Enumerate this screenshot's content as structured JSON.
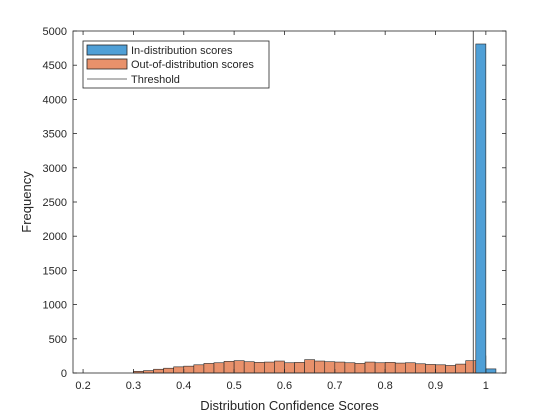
{
  "chart_data": {
    "type": "bar",
    "xlabel": "Distribution Confidence Scores",
    "ylabel": "Frequency",
    "xlim": [
      0.18,
      1.04
    ],
    "ylim": [
      0,
      5000
    ],
    "xticks": [
      "0.2",
      "0.3",
      "0.4",
      "0.5",
      "0.6",
      "0.7",
      "0.8",
      "0.9",
      "1"
    ],
    "yticks": [
      "0",
      "500",
      "1000",
      "1500",
      "2000",
      "2500",
      "3000",
      "3500",
      "4000",
      "4500",
      "5000"
    ],
    "grid": false,
    "legend_position": "top-left",
    "bin_width": 0.02,
    "series": [
      {
        "name": "In-distribution scores",
        "color": "#4f9fd6",
        "bins": [
          {
            "x0": 0.98,
            "x1": 1.0,
            "count": 4810
          },
          {
            "x0": 1.0,
            "x1": 1.02,
            "count": 60
          }
        ]
      },
      {
        "name": "Out-of-distribution scores",
        "color": "#e8916b",
        "bins": [
          {
            "x0": 0.3,
            "x1": 0.32,
            "count": 25
          },
          {
            "x0": 0.32,
            "x1": 0.34,
            "count": 35
          },
          {
            "x0": 0.34,
            "x1": 0.36,
            "count": 55
          },
          {
            "x0": 0.36,
            "x1": 0.38,
            "count": 70
          },
          {
            "x0": 0.38,
            "x1": 0.4,
            "count": 90
          },
          {
            "x0": 0.4,
            "x1": 0.42,
            "count": 100
          },
          {
            "x0": 0.42,
            "x1": 0.44,
            "count": 120
          },
          {
            "x0": 0.44,
            "x1": 0.46,
            "count": 140
          },
          {
            "x0": 0.46,
            "x1": 0.48,
            "count": 150
          },
          {
            "x0": 0.48,
            "x1": 0.5,
            "count": 170
          },
          {
            "x0": 0.5,
            "x1": 0.52,
            "count": 180
          },
          {
            "x0": 0.52,
            "x1": 0.54,
            "count": 165
          },
          {
            "x0": 0.54,
            "x1": 0.56,
            "count": 155
          },
          {
            "x0": 0.56,
            "x1": 0.58,
            "count": 160
          },
          {
            "x0": 0.58,
            "x1": 0.6,
            "count": 175
          },
          {
            "x0": 0.6,
            "x1": 0.62,
            "count": 150
          },
          {
            "x0": 0.62,
            "x1": 0.64,
            "count": 155
          },
          {
            "x0": 0.64,
            "x1": 0.66,
            "count": 195
          },
          {
            "x0": 0.66,
            "x1": 0.68,
            "count": 175
          },
          {
            "x0": 0.68,
            "x1": 0.7,
            "count": 165
          },
          {
            "x0": 0.7,
            "x1": 0.72,
            "count": 160
          },
          {
            "x0": 0.72,
            "x1": 0.74,
            "count": 150
          },
          {
            "x0": 0.74,
            "x1": 0.76,
            "count": 140
          },
          {
            "x0": 0.76,
            "x1": 0.78,
            "count": 160
          },
          {
            "x0": 0.78,
            "x1": 0.8,
            "count": 150
          },
          {
            "x0": 0.8,
            "x1": 0.82,
            "count": 155
          },
          {
            "x0": 0.82,
            "x1": 0.84,
            "count": 145
          },
          {
            "x0": 0.84,
            "x1": 0.86,
            "count": 150
          },
          {
            "x0": 0.86,
            "x1": 0.88,
            "count": 135
          },
          {
            "x0": 0.88,
            "x1": 0.9,
            "count": 125
          },
          {
            "x0": 0.9,
            "x1": 0.92,
            "count": 120
          },
          {
            "x0": 0.92,
            "x1": 0.94,
            "count": 110
          },
          {
            "x0": 0.94,
            "x1": 0.96,
            "count": 130
          },
          {
            "x0": 0.96,
            "x1": 0.98,
            "count": 180
          },
          {
            "x0": 0.98,
            "x1": 1.0,
            "count": 250
          }
        ]
      }
    ],
    "threshold": {
      "name": "Threshold",
      "x": 0.975,
      "color": "#404040"
    }
  }
}
